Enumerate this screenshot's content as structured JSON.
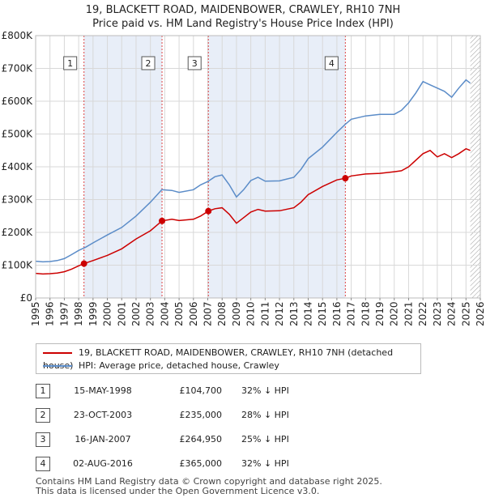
{
  "title_line1": "19, BLACKETT ROAD, MAIDENBOWER, CRAWLEY, RH10 7NH",
  "title_line2": "Price paid vs. HM Land Registry's House Price Index (HPI)",
  "colors": {
    "property": "#cc0000",
    "hpi": "#5b8cc8",
    "shade": "#e8eef8",
    "marker_line": "#dd4444"
  },
  "chart_data": {
    "type": "line",
    "xlim": [
      1995,
      2026
    ],
    "ylim": [
      0,
      800000
    ],
    "y_ticks": [
      0,
      100000,
      200000,
      300000,
      400000,
      500000,
      600000,
      700000,
      800000
    ],
    "y_tick_labels": [
      "£0",
      "£100K",
      "£200K",
      "£300K",
      "£400K",
      "£500K",
      "£600K",
      "£700K",
      "£800K"
    ],
    "x_ticks": [
      1995,
      1996,
      1997,
      1998,
      1999,
      2000,
      2001,
      2002,
      2003,
      2004,
      2005,
      2006,
      2007,
      2008,
      2009,
      2010,
      2011,
      2012,
      2013,
      2014,
      2015,
      2016,
      2017,
      2018,
      2019,
      2020,
      2021,
      2022,
      2023,
      2024,
      2025,
      2026
    ],
    "series": [
      {
        "name": "19, BLACKETT ROAD, MAIDENBOWER, CRAWLEY, RH10 7NH (detached house)",
        "color": "#cc0000",
        "x": [
          1995,
          1995.5,
          1996,
          1996.5,
          1997,
          1997.5,
          1998,
          1998.37,
          1999,
          2000,
          2001,
          2002,
          2003,
          2003.81,
          2004.5,
          2005,
          2006,
          2006.5,
          2007.04,
          2007.5,
          2008,
          2008.5,
          2009,
          2009.5,
          2010,
          2010.5,
          2011,
          2012,
          2013,
          2013.5,
          2014,
          2015,
          2016,
          2016.59,
          2017,
          2018,
          2019,
          2020,
          2020.5,
          2021,
          2022,
          2022.5,
          2023,
          2023.5,
          2024,
          2024.5,
          2025,
          2025.3
        ],
        "y": [
          75000,
          73000,
          74000,
          76000,
          80000,
          88000,
          98000,
          104700,
          114000,
          130000,
          150000,
          180000,
          205000,
          235000,
          240000,
          236000,
          240000,
          250000,
          264950,
          272000,
          275000,
          255000,
          228000,
          245000,
          262000,
          270000,
          265000,
          266000,
          275000,
          292000,
          315000,
          340000,
          360000,
          365000,
          372000,
          378000,
          380000,
          385000,
          388000,
          400000,
          440000,
          450000,
          430000,
          440000,
          428000,
          440000,
          455000,
          450000
        ]
      },
      {
        "name": "HPI: Average price, detached house, Crawley",
        "color": "#5b8cc8",
        "x": [
          1995,
          1995.5,
          1996,
          1996.5,
          1997,
          1997.5,
          1998,
          1998.5,
          1999,
          2000,
          2001,
          2002,
          2003,
          2003.8,
          2004.5,
          2005,
          2006,
          2006.5,
          2007,
          2007.5,
          2008,
          2008.5,
          2009,
          2009.5,
          2010,
          2010.5,
          2011,
          2012,
          2013,
          2013.5,
          2014,
          2015,
          2016,
          2016.6,
          2017,
          2018,
          2019,
          2020,
          2020.5,
          2021,
          2021.5,
          2022,
          2022.5,
          2023,
          2023.5,
          2024,
          2024.5,
          2025,
          2025.3
        ],
        "y": [
          112000,
          110000,
          111000,
          114000,
          120000,
          132000,
          145000,
          155000,
          168000,
          192000,
          215000,
          250000,
          292000,
          330000,
          328000,
          322000,
          330000,
          345000,
          355000,
          370000,
          375000,
          345000,
          308000,
          330000,
          358000,
          368000,
          356000,
          357000,
          368000,
          392000,
          425000,
          460000,
          505000,
          530000,
          545000,
          555000,
          560000,
          560000,
          572000,
          595000,
          625000,
          660000,
          650000,
          640000,
          630000,
          612000,
          640000,
          665000,
          655000
        ]
      }
    ],
    "sales": [
      {
        "label": "1",
        "x": 1998.37,
        "y": 104700
      },
      {
        "label": "2",
        "x": 2003.81,
        "y": 235000
      },
      {
        "label": "3",
        "x": 2007.04,
        "y": 264950
      },
      {
        "label": "4",
        "x": 2016.59,
        "y": 365000
      }
    ],
    "shaded_spans": [
      [
        1998.37,
        2003.81
      ],
      [
        2007.04,
        2016.59
      ]
    ],
    "hatched_from": 2025.3
  },
  "legend": {
    "property_label": "19, BLACKETT ROAD, MAIDENBOWER, CRAWLEY, RH10 7NH (detached house)",
    "hpi_label": "HPI: Average price, detached house, Crawley"
  },
  "sales_table": [
    {
      "num": "1",
      "date": "15-MAY-1998",
      "price": "£104,700",
      "hpi": "32% ↓ HPI"
    },
    {
      "num": "2",
      "date": "23-OCT-2003",
      "price": "£235,000",
      "hpi": "28% ↓ HPI"
    },
    {
      "num": "3",
      "date": "16-JAN-2007",
      "price": "£264,950",
      "hpi": "25% ↓ HPI"
    },
    {
      "num": "4",
      "date": "02-AUG-2016",
      "price": "£365,000",
      "hpi": "32% ↓ HPI"
    }
  ],
  "footer_line1": "Contains HM Land Registry data © Crown copyright and database right 2025.",
  "footer_line2": "This data is licensed under the Open Government Licence v3.0."
}
